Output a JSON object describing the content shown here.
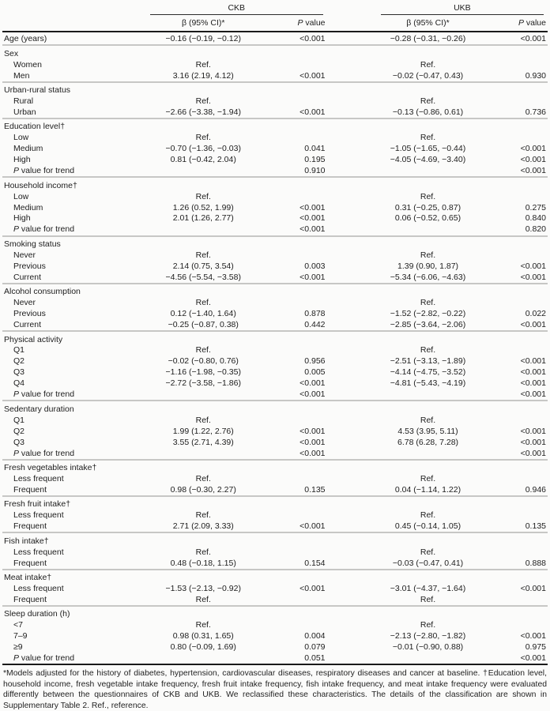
{
  "header": {
    "ckb": "CKB",
    "ukb": "UKB",
    "beta_label": "β (95% CI)*",
    "p_italic": "P",
    "p_rest": " value"
  },
  "table": {
    "sections": [
      {
        "label": "Age (years)",
        "ckb_beta": "−0.16 (−0.19, −0.12)",
        "ckb_p": "<0.001",
        "ukb_beta": "−0.28 (−0.31, −0.26)",
        "ukb_p": "<0.001",
        "rows": []
      },
      {
        "label": "Sex",
        "rows": [
          {
            "label": "Women",
            "ckb_beta": "Ref.",
            "ukb_beta": "Ref."
          },
          {
            "label": "Men",
            "ckb_beta": "3.16 (2.19, 4.12)",
            "ckb_p": "<0.001",
            "ukb_beta": "−0.02 (−0.47, 0.43)",
            "ukb_p": "0.930"
          }
        ]
      },
      {
        "label": "Urban-rural status",
        "rows": [
          {
            "label": "Rural",
            "ckb_beta": "Ref.",
            "ukb_beta": "Ref."
          },
          {
            "label": "Urban",
            "ckb_beta": "−2.66 (−3.38, −1.94)",
            "ckb_p": "<0.001",
            "ukb_beta": "−0.13 (−0.86, 0.61)",
            "ukb_p": "0.736"
          }
        ]
      },
      {
        "label": "Education level†",
        "rows": [
          {
            "label": "Low",
            "ckb_beta": "Ref.",
            "ukb_beta": "Ref."
          },
          {
            "label": "Medium",
            "ckb_beta": "−0.70 (−1.36, −0.03)",
            "ckb_p": "0.041",
            "ukb_beta": "−1.05 (−1.65, −0.44)",
            "ukb_p": "<0.001"
          },
          {
            "label": "High",
            "ckb_beta": "0.81 (−0.42, 2.04)",
            "ckb_p": "0.195",
            "ukb_beta": "−4.05 (−4.69, −3.40)",
            "ukb_p": "<0.001"
          },
          {
            "label_italic": "P",
            "label_rest": " value for trend",
            "trend": true,
            "ckb_p": "0.910",
            "ukb_p": "<0.001"
          }
        ]
      },
      {
        "label": "Household income†",
        "rows": [
          {
            "label": "Low",
            "ckb_beta": "Ref.",
            "ukb_beta": "Ref."
          },
          {
            "label": "Medium",
            "ckb_beta": "1.26 (0.52, 1.99)",
            "ckb_p": "<0.001",
            "ukb_beta": "0.31 (−0.25, 0.87)",
            "ukb_p": "0.275"
          },
          {
            "label": "High",
            "ckb_beta": "2.01 (1.26, 2.77)",
            "ckb_p": "<0.001",
            "ukb_beta": "0.06 (−0.52, 0.65)",
            "ukb_p": "0.840"
          },
          {
            "label_italic": "P",
            "label_rest": " value for trend",
            "trend": true,
            "ckb_p": "<0.001",
            "ukb_p": "0.820"
          }
        ]
      },
      {
        "label": "Smoking status",
        "rows": [
          {
            "label": "Never",
            "ckb_beta": "Ref.",
            "ukb_beta": "Ref."
          },
          {
            "label": "Previous",
            "ckb_beta": "2.14 (0.75, 3.54)",
            "ckb_p": "0.003",
            "ukb_beta": "1.39 (0.90, 1.87)",
            "ukb_p": "<0.001"
          },
          {
            "label": "Current",
            "ckb_beta": "−4.56 (−5.54, −3.58)",
            "ckb_p": "<0.001",
            "ukb_beta": "−5.34 (−6.06, −4.63)",
            "ukb_p": "<0.001"
          }
        ]
      },
      {
        "label": "Alcohol consumption",
        "rows": [
          {
            "label": "Never",
            "ckb_beta": "Ref.",
            "ukb_beta": "Ref."
          },
          {
            "label": "Previous",
            "ckb_beta": "0.12 (−1.40, 1.64)",
            "ckb_p": "0.878",
            "ukb_beta": "−1.52 (−2.82, −0.22)",
            "ukb_p": "0.022"
          },
          {
            "label": "Current",
            "ckb_beta": "−0.25 (−0.87, 0.38)",
            "ckb_p": "0.442",
            "ukb_beta": "−2.85 (−3.64, −2.06)",
            "ukb_p": "<0.001"
          }
        ]
      },
      {
        "label": "Physical activity",
        "rows": [
          {
            "label": "Q1",
            "ckb_beta": "Ref.",
            "ukb_beta": "Ref."
          },
          {
            "label": "Q2",
            "ckb_beta": "−0.02 (−0.80, 0.76)",
            "ckb_p": "0.956",
            "ukb_beta": "−2.51 (−3.13, −1.89)",
            "ukb_p": "<0.001"
          },
          {
            "label": "Q3",
            "ckb_beta": "−1.16 (−1.98, −0.35)",
            "ckb_p": "0.005",
            "ukb_beta": "−4.14 (−4.75, −3.52)",
            "ukb_p": "<0.001"
          },
          {
            "label": "Q4",
            "ckb_beta": "−2.72 (−3.58, −1.86)",
            "ckb_p": "<0.001",
            "ukb_beta": "−4.81 (−5.43, −4.19)",
            "ukb_p": "<0.001"
          },
          {
            "label_italic": "P",
            "label_rest": " value for trend",
            "trend": true,
            "ckb_p": "<0.001",
            "ukb_p": "<0.001"
          }
        ]
      },
      {
        "label": "Sedentary duration",
        "rows": [
          {
            "label": "Q1",
            "ckb_beta": "Ref.",
            "ukb_beta": "Ref."
          },
          {
            "label": "Q2",
            "ckb_beta": "1.99 (1.22, 2.76)",
            "ckb_p": "<0.001",
            "ukb_beta": "4.53 (3.95, 5.11)",
            "ukb_p": "<0.001"
          },
          {
            "label": "Q3",
            "ckb_beta": "3.55 (2.71, 4.39)",
            "ckb_p": "<0.001",
            "ukb_beta": "6.78 (6.28, 7.28)",
            "ukb_p": "<0.001"
          },
          {
            "label_italic": "P",
            "label_rest": " value for trend",
            "trend": true,
            "ckb_p": "<0.001",
            "ukb_p": "<0.001"
          }
        ]
      },
      {
        "label": "Fresh vegetables intake†",
        "rows": [
          {
            "label": "Less frequent",
            "ckb_beta": "Ref.",
            "ukb_beta": "Ref."
          },
          {
            "label": "Frequent",
            "ckb_beta": "0.98 (−0.30, 2.27)",
            "ckb_p": "0.135",
            "ukb_beta": "0.04 (−1.14, 1.22)",
            "ukb_p": "0.946"
          }
        ]
      },
      {
        "label": "Fresh fruit intake†",
        "rows": [
          {
            "label": "Less frequent",
            "ckb_beta": "Ref.",
            "ukb_beta": "Ref."
          },
          {
            "label": "Frequent",
            "ckb_beta": "2.71 (2.09, 3.33)",
            "ckb_p": "<0.001",
            "ukb_beta": "0.45 (−0.14, 1.05)",
            "ukb_p": "0.135"
          }
        ]
      },
      {
        "label": "Fish intake†",
        "rows": [
          {
            "label": "Less frequent",
            "ckb_beta": "Ref.",
            "ukb_beta": "Ref."
          },
          {
            "label": "Frequent",
            "ckb_beta": "0.48 (−0.18, 1.15)",
            "ckb_p": "0.154",
            "ukb_beta": "−0.03 (−0.47, 0.41)",
            "ukb_p": "0.888"
          }
        ]
      },
      {
        "label": "Meat intake†",
        "rows": [
          {
            "label": "Less frequent",
            "ckb_beta": "−1.53 (−2.13, −0.92)",
            "ckb_p": "<0.001",
            "ukb_beta": "−3.01 (−4.37, −1.64)",
            "ukb_p": "<0.001"
          },
          {
            "label": "Frequent",
            "ckb_beta": "Ref.",
            "ukb_beta": "Ref."
          }
        ]
      },
      {
        "label": "Sleep duration (h)",
        "rows": [
          {
            "label": "<7",
            "ckb_beta": "Ref.",
            "ukb_beta": "Ref."
          },
          {
            "label": "7–9",
            "ckb_beta": "0.98 (0.31, 1.65)",
            "ckb_p": "0.004",
            "ukb_beta": "−2.13 (−2.80, −1.82)",
            "ukb_p": "<0.001"
          },
          {
            "label": "≥9",
            "ckb_beta": "0.80 (−0.09, 1.69)",
            "ckb_p": "0.079",
            "ukb_beta": "−0.01 (−0.90, 0.88)",
            "ukb_p": "0.975"
          },
          {
            "label_italic": "P",
            "label_rest": " value for trend",
            "trend": true,
            "ckb_p": "0.051",
            "ukb_p": "<0.001"
          }
        ]
      }
    ]
  },
  "footnote": "*Models adjusted for the history of diabetes, hypertension, cardiovascular diseases, respiratory diseases and cancer at baseline. †Education level, household income, fresh vegetable intake frequency, fresh fruit intake frequency, fish intake frequency, and meat intake frequency were evaluated differently between the questionnaires of CKB and UKB. We reclassified these characteristics. The details of the classification are shown in Supplementary Table 2. Ref., reference."
}
